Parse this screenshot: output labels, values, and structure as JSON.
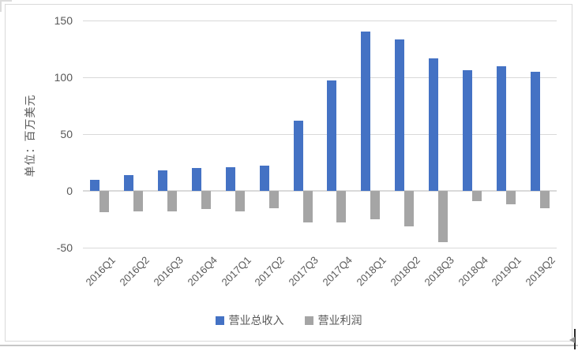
{
  "chart_data": {
    "type": "bar",
    "title": "",
    "ylabel": "单位：百万美元",
    "xlabel": "",
    "categories": [
      "2016Q1",
      "2016Q2",
      "2016Q3",
      "2016Q4",
      "2017Q1",
      "2017Q2",
      "2017Q3",
      "2017Q4",
      "2018Q1",
      "2018Q2",
      "2018Q3",
      "2018Q4",
      "2019Q1",
      "2019Q2"
    ],
    "series": [
      {
        "name": "营业总收入",
        "color": "#4472C4",
        "values": [
          10,
          14,
          18,
          20,
          21,
          22,
          62,
          97,
          140,
          133,
          117,
          106,
          110,
          105
        ]
      },
      {
        "name": "营业利润",
        "color": "#A5A5A5",
        "values": [
          -19,
          -18,
          -18,
          -16,
          -18,
          -15,
          -28,
          -28,
          -25,
          -31,
          -45,
          -9,
          -12,
          -15
        ]
      }
    ],
    "ylim": [
      -50,
      150
    ],
    "yticks": [
      150,
      100,
      50,
      0,
      -50
    ],
    "grid": true,
    "legend_position": "bottom",
    "x_tick_rotation": -45
  },
  "colors": {
    "grid": "#d9d9d9",
    "axis_text": "#595959",
    "frame_border": "#d9d9d9",
    "background": "#ffffff"
  }
}
